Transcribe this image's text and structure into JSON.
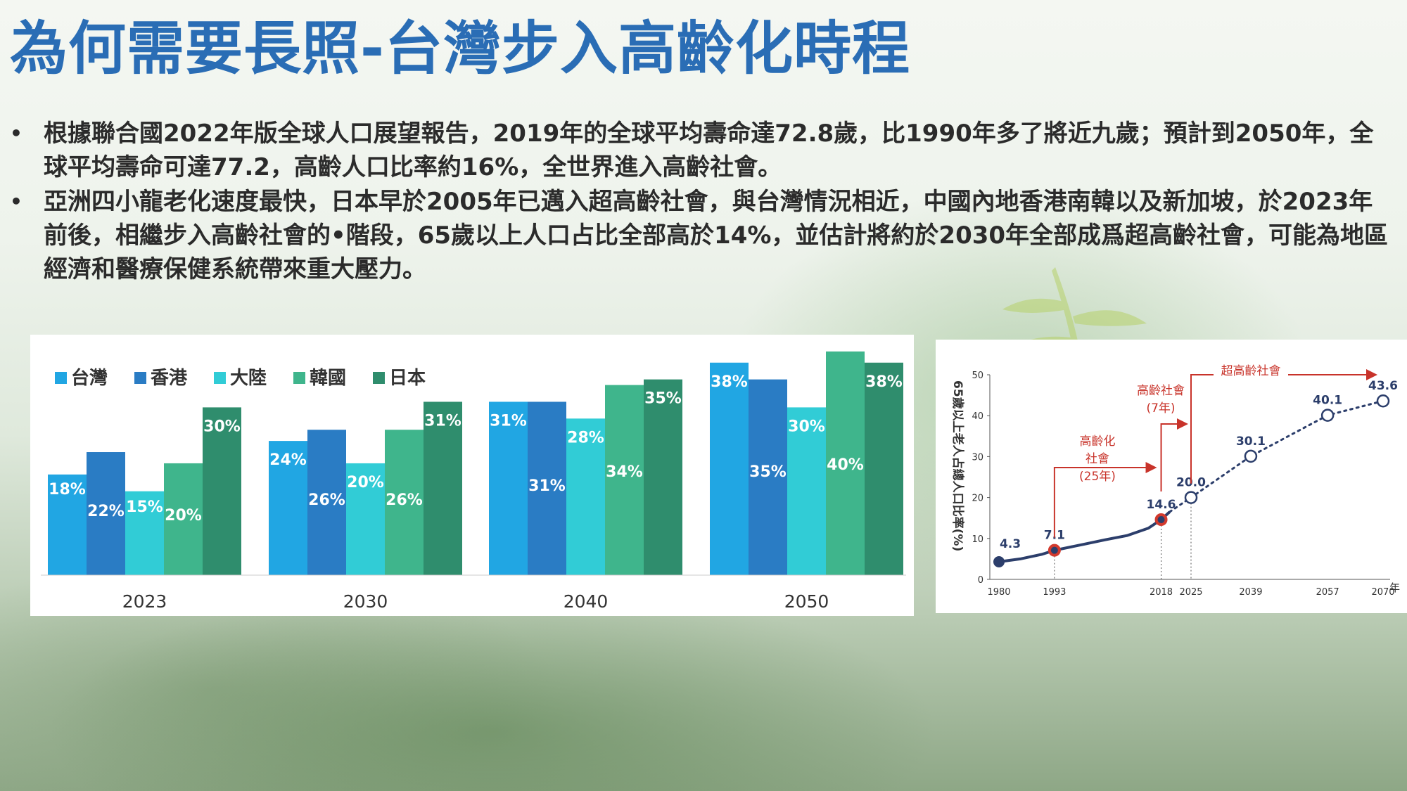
{
  "title": "為何需要長照-台灣步入高齡化時程",
  "bullets": [
    "根據聯合國2022年版全球人口展望報告，2019年的全球平均壽命達72.8歲，比1990年多了將近九歲；預計到2050年，全球平均壽命可達77.2，高齡人口比率約16%，全世界進入高齡社會。",
    "亞洲四小龍老化速度最快，日本早於2005年已邁入超高齡社會，與台灣情況相近，中國內地香港南韓以及新加坡，於2023年前後，相繼步入高齡社會的•階段，65歲以上人口占比全部高於14%，並估計將約於2030年全部成爲超高齡社會，可能為地區經濟和醫療保健系統帶來重大壓力。"
  ],
  "bullet_symbol": "•",
  "chart_data": [
    {
      "type": "bar",
      "title": "",
      "categories": [
        "2023",
        "2030",
        "2040",
        "2050"
      ],
      "series": [
        {
          "name": "台灣",
          "values": [
            18,
            24,
            31,
            38
          ]
        },
        {
          "name": "香港",
          "values": [
            22,
            26,
            31,
            35
          ]
        },
        {
          "name": "大陸",
          "values": [
            15,
            20,
            28,
            30
          ]
        },
        {
          "name": "韓國",
          "values": [
            20,
            26,
            34,
            40
          ]
        },
        {
          "name": "日本",
          "values": [
            30,
            31,
            35,
            38
          ]
        }
      ],
      "value_suffix": "%",
      "ylim": [
        0,
        43
      ],
      "legend": "top-left",
      "colors": [
        "#21a6e3",
        "#2a7cc4",
        "#31ccd6",
        "#3fb58c",
        "#2f8d6d"
      ]
    },
    {
      "type": "line",
      "xlabel": "年",
      "ylabel": "65歲以上老人占總人口比率(%)",
      "x_ticks": [
        "1980",
        "1993",
        "2018",
        "2025",
        "2039",
        "2057",
        "2070"
      ],
      "y_ticks": [
        "0",
        "10",
        "20",
        "30",
        "40",
        "50"
      ],
      "xlim": [
        1980,
        2070
      ],
      "ylim": [
        0,
        50
      ],
      "actual": [
        [
          1980,
          4.3
        ],
        [
          1985,
          5.0
        ],
        [
          1990,
          6.1
        ],
        [
          1993,
          7.1
        ],
        [
          2000,
          8.6
        ],
        [
          2005,
          9.7
        ],
        [
          2010,
          10.7
        ],
        [
          2015,
          12.5
        ],
        [
          2018,
          14.6
        ],
        [
          2020,
          16.5
        ]
      ],
      "projected": [
        [
          2020,
          16.5
        ],
        [
          2025,
          20.0
        ],
        [
          2039,
          30.1
        ],
        [
          2057,
          40.1
        ],
        [
          2070,
          43.6
        ]
      ],
      "points": [
        {
          "year": 1980,
          "value": 4.3,
          "label": "4.3",
          "style": "filled"
        },
        {
          "year": 1993,
          "value": 7.1,
          "label": "7.1",
          "style": "red-ring"
        },
        {
          "year": 2018,
          "value": 14.6,
          "label": "14.6",
          "style": "red-ring"
        },
        {
          "year": 2025,
          "value": 20.0,
          "label": "20.0",
          "style": "open"
        },
        {
          "year": 2039,
          "value": 30.1,
          "label": "30.1",
          "style": "open"
        },
        {
          "year": 2057,
          "value": 40.1,
          "label": "40.1",
          "style": "open"
        },
        {
          "year": 2070,
          "value": 43.6,
          "label": "43.6",
          "style": "open"
        }
      ],
      "annotations": [
        {
          "lines": [
            "高齡化",
            "社會",
            "(25年)"
          ],
          "from": 1993,
          "to": 2018
        },
        {
          "lines": [
            "高齡社會",
            "(7年)"
          ],
          "from": 2018,
          "to": 2025
        },
        {
          "lines": [
            "超高齡社會"
          ],
          "from": 2025,
          "to": 2070
        }
      ],
      "colors": {
        "line": "#2c3e6b",
        "marker_red": "#d23a2e",
        "annotation": "#c8332a",
        "open_marker": "#2c3e6b"
      }
    }
  ]
}
